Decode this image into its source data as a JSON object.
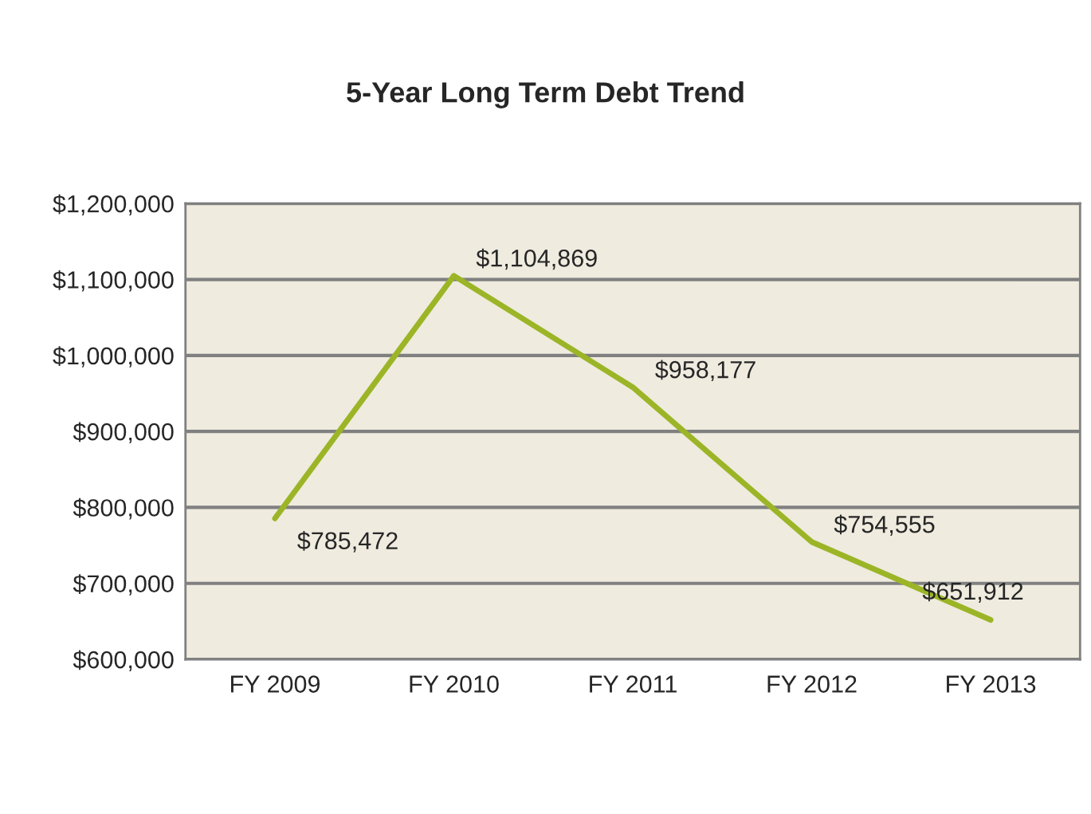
{
  "chart_data": {
    "type": "line",
    "title": "5-Year Long Term Debt Trend",
    "categories": [
      "FY 2009",
      "FY 2010",
      "FY 2011",
      "FY 2012",
      "FY 2013"
    ],
    "series": [
      {
        "color": "#9bb526",
        "values": [
          785472,
          1104869,
          958177,
          754555,
          651912
        ]
      }
    ],
    "value_labels": [
      "$785,472",
      "$1,104,869",
      "$958,177",
      "$754,555",
      "$651,912"
    ],
    "ylim": [
      600000,
      1200000
    ],
    "yticks": [
      {
        "value": 600000,
        "label": "$600,000"
      },
      {
        "value": 700000,
        "label": "$700,000"
      },
      {
        "value": 800000,
        "label": "$800,000"
      },
      {
        "value": 900000,
        "label": "$900,000"
      },
      {
        "value": 1000000,
        "label": "$1,000,000"
      },
      {
        "value": 1100000,
        "label": "$1,100,000"
      },
      {
        "value": 1200000,
        "label": "$1,200,000"
      }
    ],
    "grid": "y"
  }
}
